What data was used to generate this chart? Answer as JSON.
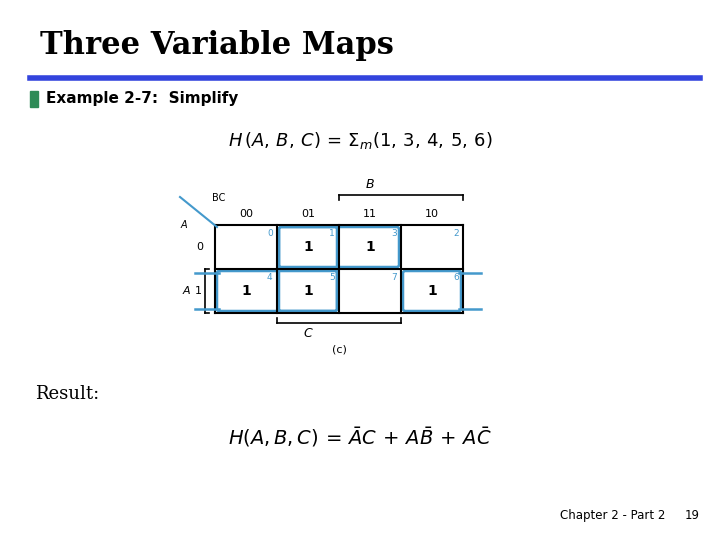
{
  "title": "Three Variable Maps",
  "title_fontsize": 22,
  "title_fontweight": "bold",
  "bg_color": "#ffffff",
  "bullet_color": "#2e8b57",
  "example_text": "Example 2-7:  Simplify",
  "result_text": "Result:",
  "footer_text": "Chapter 2 - Part 2",
  "page_num": "19",
  "kmap_col_labels": [
    "00",
    "01",
    "11",
    "10"
  ],
  "kmap_minterms": [
    1,
    3,
    4,
    5,
    6
  ],
  "cyan_color": "#4499cc",
  "rule_color": "#3344dd"
}
